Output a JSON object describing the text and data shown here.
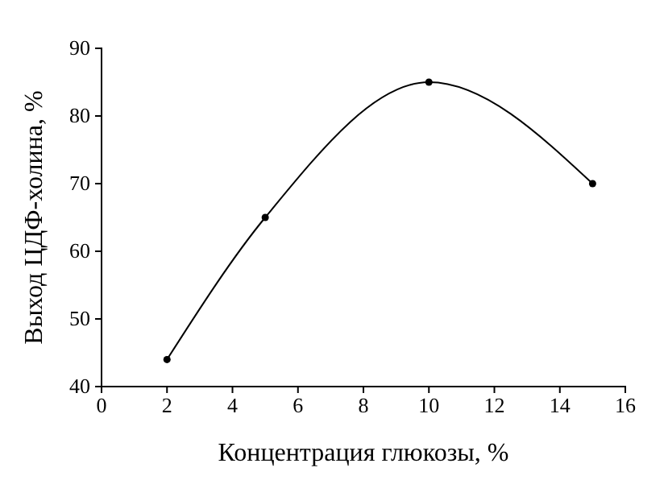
{
  "chart_data": {
    "type": "line",
    "xlabel": "Концентрация глюкозы, %",
    "ylabel": "Выход ЦДФ-холина, %",
    "x": [
      2,
      5,
      10,
      15
    ],
    "series": [
      {
        "color": "#000000",
        "values": [
          44,
          65,
          85,
          70
        ]
      }
    ],
    "xlim": [
      0,
      16
    ],
    "xticks": [
      0,
      2,
      4,
      6,
      8,
      10,
      12,
      14,
      16
    ],
    "ylim": [
      40,
      90
    ],
    "yticks": [
      40,
      50,
      60,
      70,
      80,
      90
    ],
    "marker": "circle",
    "line_style": "solid"
  }
}
